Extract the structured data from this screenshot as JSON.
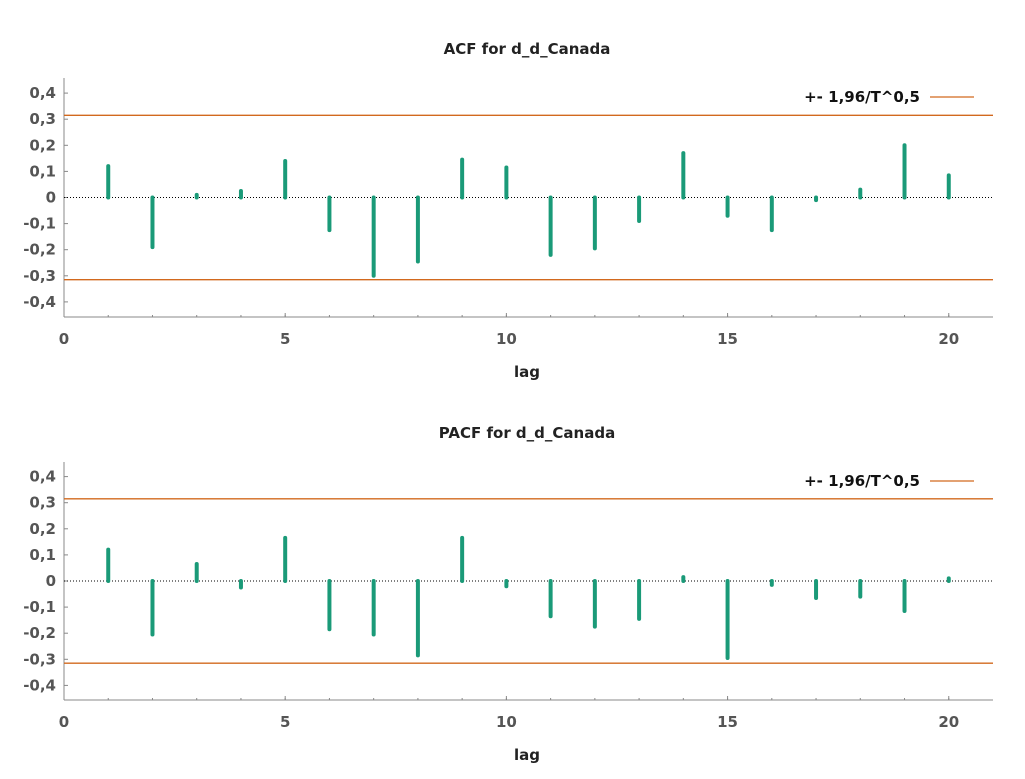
{
  "chart_data": [
    {
      "type": "bar",
      "title": "ACF for d_d_Canada",
      "xlabel": "lag",
      "ylabel": "",
      "x": [
        1,
        2,
        3,
        4,
        5,
        6,
        7,
        8,
        9,
        10,
        11,
        12,
        13,
        14,
        15,
        16,
        17,
        18,
        19,
        20
      ],
      "series": [
        {
          "values": [
            0.12,
            -0.19,
            0.01,
            0.025,
            0.14,
            -0.125,
            -0.3,
            -0.245,
            0.145,
            0.115,
            -0.22,
            -0.195,
            -0.09,
            0.17,
            -0.07,
            -0.125,
            -0.01,
            0.03,
            0.2,
            0.085
          ]
        }
      ],
      "bound": 0.3148,
      "legend_label": "+- 1,96/T^0,5",
      "legend_position": "top-right",
      "xlim": [
        0,
        21
      ],
      "ylim": [
        -0.46,
        0.46
      ],
      "xticks": [
        "0",
        "5",
        "10",
        "15",
        "20"
      ],
      "yticks": [
        "0,4",
        "0,3",
        "0,2",
        "0,1",
        "0",
        "-0,1",
        "-0,2",
        "-0,3",
        "-0,4"
      ],
      "colors": {
        "bars": "#1a9a78",
        "bounds": "#d2691e",
        "zero_line": "#000000"
      }
    },
    {
      "type": "bar",
      "title": "PACF for d_d_Canada",
      "xlabel": "lag",
      "ylabel": "",
      "x": [
        1,
        2,
        3,
        4,
        5,
        6,
        7,
        8,
        9,
        10,
        11,
        12,
        13,
        14,
        15,
        16,
        17,
        18,
        19,
        20
      ],
      "series": [
        {
          "values": [
            0.12,
            -0.205,
            0.065,
            -0.025,
            0.165,
            -0.185,
            -0.205,
            -0.285,
            0.165,
            -0.02,
            -0.135,
            -0.175,
            -0.145,
            0.015,
            -0.295,
            -0.015,
            -0.065,
            -0.06,
            -0.115,
            0.01
          ]
        }
      ],
      "bound": 0.3148,
      "legend_label": "+- 1,96/T^0,5",
      "legend_position": "top-right",
      "xlim": [
        0,
        21
      ],
      "ylim": [
        -0.46,
        0.46
      ],
      "xticks": [
        "0",
        "5",
        "10",
        "15",
        "20"
      ],
      "yticks": [
        "0,4",
        "0,3",
        "0,2",
        "0,1",
        "0",
        "-0,1",
        "-0,2",
        "-0,3",
        "-0,4"
      ],
      "colors": {
        "bars": "#1a9a78",
        "bounds": "#d2691e",
        "zero_line": "#000000"
      }
    }
  ]
}
